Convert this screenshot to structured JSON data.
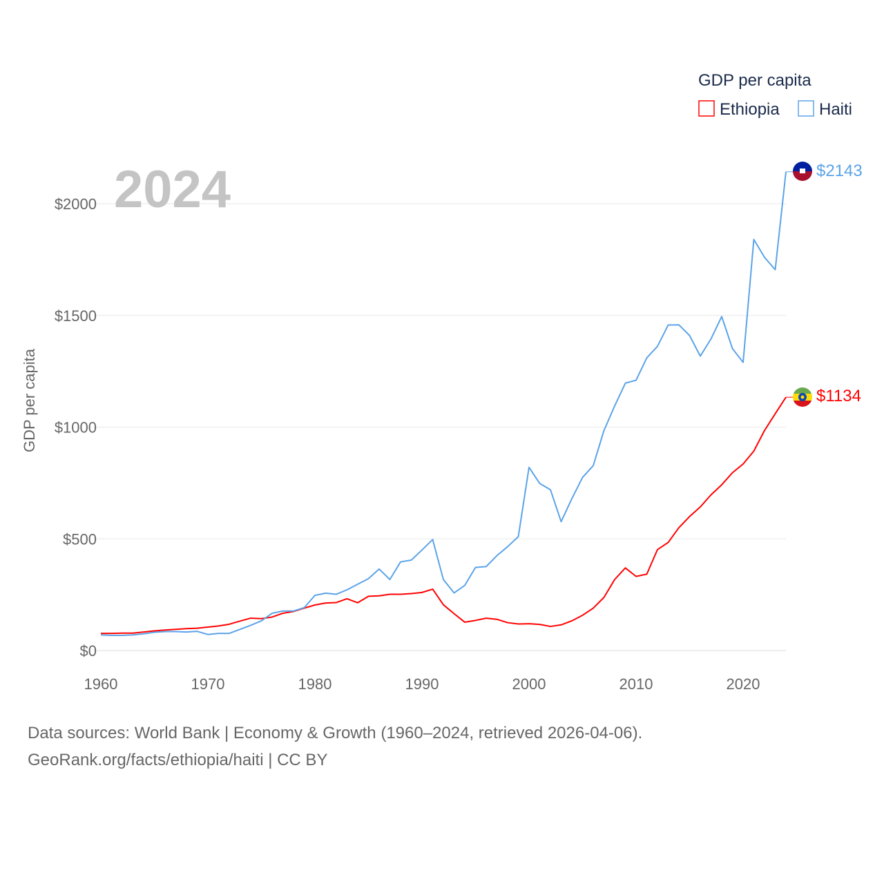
{
  "chart_data": {
    "type": "line",
    "title": "GDP per capita",
    "ylabel": "GDP per capita",
    "xlabel": "",
    "xlim": [
      1960,
      2024
    ],
    "ylim": [
      0,
      2200
    ],
    "x_ticks": [
      1960,
      1970,
      1980,
      1990,
      2000,
      2010,
      2020
    ],
    "x_tick_labels": [
      "1960",
      "1970",
      "1980",
      "1990",
      "2000",
      "2010",
      "2020"
    ],
    "y_ticks": [
      0,
      500,
      1000,
      1500,
      2000
    ],
    "y_tick_labels": [
      "$0",
      "$500",
      "$1000",
      "$1500",
      "$2000"
    ],
    "grid": true,
    "legend_position": "top-right",
    "current_year": "2024",
    "x": [
      1960,
      1961,
      1962,
      1963,
      1964,
      1965,
      1966,
      1967,
      1968,
      1969,
      1970,
      1971,
      1972,
      1973,
      1974,
      1975,
      1976,
      1977,
      1978,
      1979,
      1980,
      1981,
      1982,
      1983,
      1984,
      1985,
      1986,
      1987,
      1988,
      1989,
      1990,
      1991,
      1992,
      1993,
      1994,
      1995,
      1996,
      1997,
      1998,
      1999,
      2000,
      2001,
      2002,
      2003,
      2004,
      2005,
      2006,
      2007,
      2008,
      2009,
      2010,
      2011,
      2012,
      2013,
      2014,
      2015,
      2016,
      2017,
      2018,
      2019,
      2020,
      2021,
      2022,
      2023,
      2024
    ],
    "series": [
      {
        "name": "Ethiopia",
        "color": "#ff0000",
        "end_label": "$1134",
        "values": [
          77,
          77,
          78,
          78,
          83,
          88,
          92,
          95,
          98,
          100,
          105,
          110,
          118,
          132,
          145,
          143,
          150,
          167,
          175,
          190,
          204,
          213,
          215,
          232,
          214,
          243,
          245,
          252,
          252,
          255,
          260,
          275,
          205,
          165,
          127,
          135,
          145,
          140,
          125,
          119,
          120,
          117,
          108,
          115,
          133,
          158,
          190,
          238,
          318,
          370,
          332,
          342,
          452,
          484,
          550,
          600,
          643,
          697,
          742,
          796,
          835,
          893,
          985,
          1060,
          1134
        ]
      },
      {
        "name": "Haiti",
        "color": "#5ba3e8",
        "end_label": "$2143",
        "values": [
          70,
          68,
          68,
          70,
          75,
          82,
          85,
          85,
          83,
          86,
          72,
          77,
          77,
          95,
          113,
          133,
          167,
          177,
          177,
          192,
          247,
          257,
          252,
          272,
          297,
          322,
          365,
          318,
          397,
          405,
          450,
          497,
          318,
          258,
          292,
          372,
          376,
          425,
          465,
          510,
          820,
          748,
          720,
          577,
          680,
          775,
          828,
          985,
          1095,
          1197,
          1210,
          1310,
          1362,
          1457,
          1458,
          1410,
          1318,
          1395,
          1495,
          1352,
          1290,
          1840,
          1760,
          1705,
          2143
        ]
      }
    ]
  },
  "footer": {
    "line1": "Data sources: World Bank | Economy & Growth (1960–2024, retrieved 2026-04-06).",
    "line2": "GeoRank.org/facts/ethiopia/haiti | CC BY"
  }
}
